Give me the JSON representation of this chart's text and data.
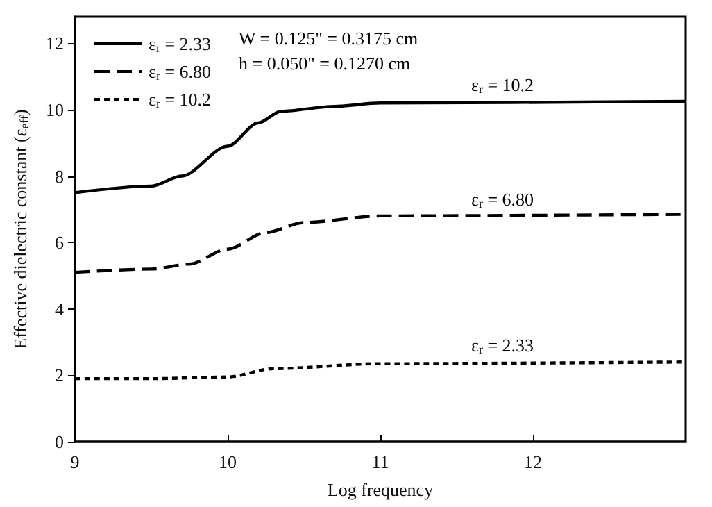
{
  "chart_data": {
    "type": "line",
    "xlabel": "Log frequency",
    "ylabel": "Effective dielectric constant (ε$_{eff}$)",
    "xlim": [
      9,
      13
    ],
    "xticks": [
      9,
      10,
      11,
      12
    ],
    "ylim": [
      0,
      12.8
    ],
    "yticks": [
      0,
      2,
      4,
      6,
      8,
      10,
      12
    ],
    "grid": false,
    "legend": "top left",
    "marker": "none",
    "series": [
      {
        "name": "ε$_{r}$ = 2.33",
        "color": "#000000",
        "line_style": "solid",
        "x": [
          9,
          9.5,
          9.7,
          10,
          10.2,
          10.35,
          10.7,
          11,
          13
        ],
        "values": [
          7.5,
          7.7,
          8.0,
          8.9,
          9.6,
          9.95,
          10.1,
          10.2,
          10.25
        ]
      },
      {
        "name": "ε$_{r}$ = 6.80",
        "color": "#000000",
        "line_style": "dashed",
        "x": [
          9,
          9.5,
          9.75,
          10,
          10.25,
          10.5,
          11,
          13
        ],
        "values": [
          5.1,
          5.2,
          5.35,
          5.8,
          6.3,
          6.6,
          6.8,
          6.85
        ]
      },
      {
        "name": "ε$_{r}$ = 10.2",
        "color": "#000000",
        "line_style": "dotted",
        "x": [
          9,
          9.5,
          10,
          10.3,
          11,
          13
        ],
        "values": [
          1.9,
          1.9,
          1.95,
          2.2,
          2.35,
          2.4
        ]
      }
    ],
    "annotations": [
      "W = 0.125\" = 0.3175 cm",
      "h = 0.050\" = 0.1270 cm",
      "ε$_{r}$ = 10.2",
      "ε$_{r}$ = 6.80",
      "ε$_{r}$ = 2.33"
    ]
  }
}
